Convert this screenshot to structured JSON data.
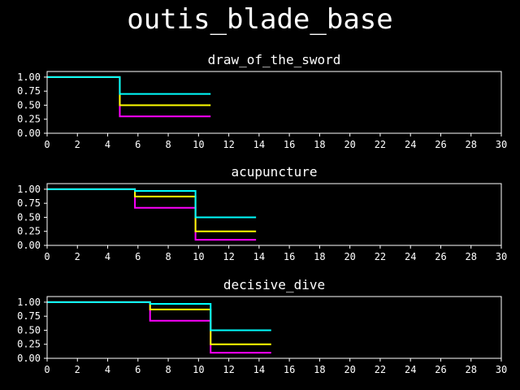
{
  "title": "outis_blade_base",
  "colors": {
    "background": "#000000",
    "foreground": "#ffffff",
    "cyan": "#00ffff",
    "yellow": "#ffff00",
    "magenta": "#ff00ff"
  },
  "chart_data": [
    {
      "type": "line",
      "step": "post",
      "title": "draw_of_the_sword",
      "xlim": [
        0,
        30
      ],
      "ylim": [
        0,
        1.1
      ],
      "xticks": [
        "0",
        "2",
        "4",
        "6",
        "8",
        "10",
        "12",
        "14",
        "16",
        "18",
        "20",
        "22",
        "24",
        "26",
        "28",
        "30"
      ],
      "yticks": [
        "0.00",
        "0.25",
        "0.50",
        "0.75",
        "1.00"
      ],
      "series": [
        {
          "color": "magenta",
          "x": [
            0,
            4.8,
            10.8
          ],
          "y": [
            1.0,
            0.3,
            0.3
          ]
        },
        {
          "color": "yellow",
          "x": [
            0,
            4.8,
            10.8
          ],
          "y": [
            1.0,
            0.5,
            0.5
          ]
        },
        {
          "color": "cyan",
          "x": [
            0,
            4.8,
            10.8
          ],
          "y": [
            1.0,
            0.7,
            0.7
          ]
        }
      ]
    },
    {
      "type": "line",
      "step": "post",
      "title": "acupuncture",
      "xlim": [
        0,
        30
      ],
      "ylim": [
        0,
        1.1
      ],
      "xticks": [
        "0",
        "2",
        "4",
        "6",
        "8",
        "10",
        "12",
        "14",
        "16",
        "18",
        "20",
        "22",
        "24",
        "26",
        "28",
        "30"
      ],
      "yticks": [
        "0.00",
        "0.25",
        "0.50",
        "0.75",
        "1.00"
      ],
      "series": [
        {
          "color": "magenta",
          "x": [
            0,
            5.8,
            9.8,
            13.8
          ],
          "y": [
            1.0,
            0.67,
            0.1,
            0.1
          ]
        },
        {
          "color": "yellow",
          "x": [
            0,
            5.8,
            9.8,
            13.8
          ],
          "y": [
            1.0,
            0.87,
            0.25,
            0.25
          ]
        },
        {
          "color": "cyan",
          "x": [
            0,
            5.8,
            9.8,
            13.8
          ],
          "y": [
            1.0,
            0.97,
            0.5,
            0.5
          ]
        }
      ]
    },
    {
      "type": "line",
      "step": "post",
      "title": "decisive_dive",
      "xlim": [
        0,
        30
      ],
      "ylim": [
        0,
        1.1
      ],
      "xticks": [
        "0",
        "2",
        "4",
        "6",
        "8",
        "10",
        "12",
        "14",
        "16",
        "18",
        "20",
        "22",
        "24",
        "26",
        "28",
        "30"
      ],
      "yticks": [
        "0.00",
        "0.25",
        "0.50",
        "0.75",
        "1.00"
      ],
      "series": [
        {
          "color": "magenta",
          "x": [
            0,
            6.8,
            10.8,
            14.8
          ],
          "y": [
            1.0,
            0.67,
            0.1,
            0.1
          ]
        },
        {
          "color": "yellow",
          "x": [
            0,
            6.8,
            10.8,
            14.8
          ],
          "y": [
            1.0,
            0.87,
            0.25,
            0.25
          ]
        },
        {
          "color": "cyan",
          "x": [
            0,
            6.8,
            10.8,
            14.8
          ],
          "y": [
            1.0,
            0.97,
            0.5,
            0.5
          ]
        }
      ]
    }
  ]
}
